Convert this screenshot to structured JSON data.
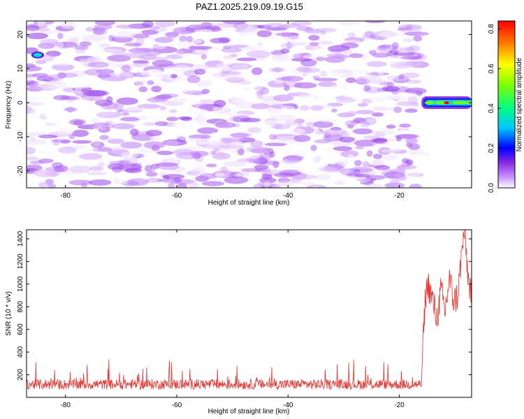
{
  "title": "PAZ1.2025.219.09.19.G15",
  "chart_data": [
    {
      "type": "heatmap",
      "xlabel": "Height of straight line (km)",
      "ylabel": "Frequency (Hz)",
      "xlim": [
        -87,
        -7
      ],
      "ylim": [
        -25,
        24
      ],
      "x_ticks": [
        -80,
        -60,
        -40,
        -20
      ],
      "y_ticks": [
        -20,
        -10,
        0,
        10,
        20
      ],
      "colorbar": {
        "label": "Normalized spectral amplitude",
        "range": [
          0.0,
          0.84
        ],
        "ticks": [
          0.0,
          0.2,
          0.4,
          0.6,
          0.8
        ]
      },
      "features": [
        {
          "kind": "background-noise",
          "x_range": [
            -87,
            -16
          ],
          "amplitude": [
            0.0,
            0.12
          ]
        },
        {
          "kind": "signal-band",
          "x_range": [
            -16,
            -7
          ],
          "frequency": 0,
          "amplitude": [
            0.3,
            0.84
          ]
        },
        {
          "kind": "blob",
          "x": -85,
          "frequency": 14,
          "amplitude": 0.35
        }
      ]
    },
    {
      "type": "line",
      "xlabel": "Height of straight line (km)",
      "ylabel": "SNR (10 * v/v)",
      "xlim": [
        -87,
        -7
      ],
      "ylim": [
        0,
        1480
      ],
      "x_ticks": [
        -80,
        -60,
        -40,
        -20
      ],
      "y_ticks": [
        200,
        400,
        600,
        800,
        1000,
        1200,
        1400
      ],
      "series": [
        {
          "color": "#e8322e",
          "segments": [
            {
              "x_range": [
                -87,
                -16
              ],
              "mean": 115,
              "spread": 90,
              "max": 300
            },
            {
              "x_range": [
                -16,
                -7
              ],
              "points": [
                [
                  -16,
                  200
                ],
                [
                  -15.3,
                  900
                ],
                [
                  -14.8,
                  1000
                ],
                [
                  -14,
                  850
                ],
                [
                  -13.2,
                  700
                ],
                [
                  -12.5,
                  950
                ],
                [
                  -11.8,
                  750
                ],
                [
                  -11,
                  1050
                ],
                [
                  -10.2,
                  850
                ],
                [
                  -9.5,
                  900
                ],
                [
                  -8.8,
                  1250
                ],
                [
                  -8.3,
                  1480
                ],
                [
                  -7.6,
                  1050
                ],
                [
                  -7,
                  900
                ]
              ]
            }
          ]
        }
      ]
    }
  ]
}
